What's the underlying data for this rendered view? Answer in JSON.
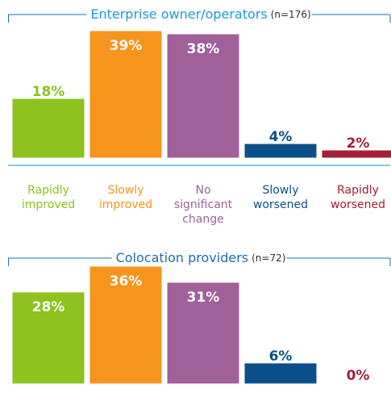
{
  "chart_data": [
    {
      "type": "bar",
      "title": "Enterprise owner/operators",
      "subtitle": "(n=176)",
      "categories": [
        "Rapidly improved",
        "Slowly improved",
        "No significant change",
        "Slowly worsened",
        "Rapidly worsened"
      ],
      "values": [
        18,
        39,
        38,
        4,
        2
      ],
      "value_labels": [
        "18%",
        "39%",
        "38%",
        "4%",
        "2%"
      ],
      "colors": [
        "#8dc21f",
        "#f7941d",
        "#a0609a",
        "#0b4f8a",
        "#a51e36"
      ]
    },
    {
      "type": "bar",
      "title": "Colocation providers",
      "subtitle": "(n=72)",
      "values": [
        28,
        36,
        31,
        6,
        0
      ],
      "value_labels": [
        "28%",
        "36%",
        "31%",
        "6%",
        "0%"
      ],
      "colors": [
        "#8dc21f",
        "#f7941d",
        "#a0609a",
        "#0b4f8a",
        "#a51e36"
      ]
    }
  ]
}
